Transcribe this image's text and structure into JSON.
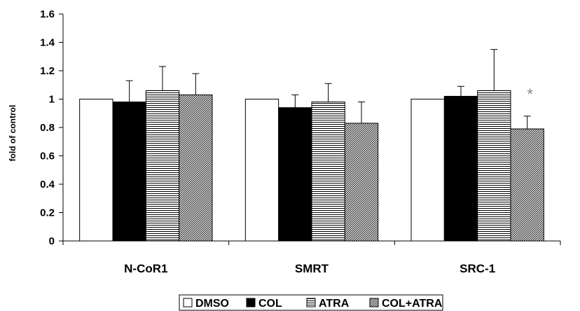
{
  "chart_data": {
    "type": "bar",
    "ylabel": "fold of control",
    "xlabel": "",
    "ylim": [
      0,
      1.6
    ],
    "yticks": [
      "0",
      "0.2",
      "0.4",
      "0.6",
      "0.8",
      "1",
      "1.2",
      "1.4",
      "1.6"
    ],
    "categories": [
      "N-CoR1",
      "SMRT",
      "SRC-1"
    ],
    "series": [
      {
        "name": "DMSO",
        "pattern": "white",
        "values": [
          1.0,
          1.0,
          1.0
        ],
        "error": [
          0.0,
          0.0,
          0.0
        ]
      },
      {
        "name": "COL",
        "pattern": "black",
        "values": [
          0.98,
          0.94,
          1.02
        ],
        "error": [
          0.15,
          0.09,
          0.07
        ]
      },
      {
        "name": "ATRA",
        "pattern": "horizontal-lines",
        "values": [
          1.06,
          0.98,
          1.06
        ],
        "error": [
          0.17,
          0.13,
          0.29
        ]
      },
      {
        "name": "COL+ATRA",
        "pattern": "diagonal-hatch",
        "values": [
          1.03,
          0.83,
          0.79
        ],
        "error": [
          0.15,
          0.15,
          0.09
        ]
      }
    ],
    "annotations": [
      {
        "text": "*",
        "category": "SRC-1",
        "series": "COL+ATRA"
      }
    ],
    "legend_position": "bottom",
    "grid": false
  }
}
